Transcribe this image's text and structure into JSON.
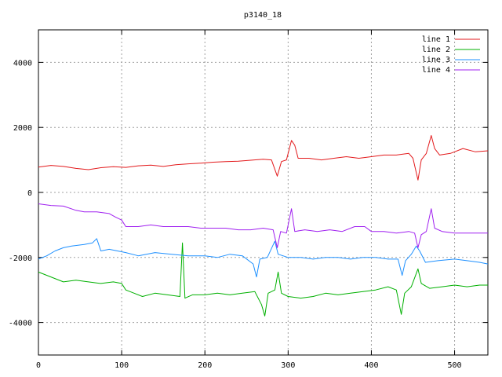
{
  "chart_data": {
    "type": "line",
    "title": "p3140_18",
    "xlabel": "",
    "ylabel": "",
    "xlim": [
      0,
      540
    ],
    "ylim": [
      -5000,
      5000
    ],
    "x_ticks": [
      0,
      100,
      200,
      300,
      400,
      500
    ],
    "y_ticks": [
      -4000,
      -2000,
      0,
      2000,
      4000
    ],
    "grid": true,
    "legend_position": "top-right",
    "series": [
      {
        "name": "line 1",
        "color": "#e31a1c",
        "points": [
          [
            0,
            780
          ],
          [
            15,
            830
          ],
          [
            30,
            800
          ],
          [
            45,
            740
          ],
          [
            60,
            700
          ],
          [
            75,
            760
          ],
          [
            90,
            790
          ],
          [
            105,
            770
          ],
          [
            120,
            820
          ],
          [
            135,
            840
          ],
          [
            150,
            800
          ],
          [
            165,
            850
          ],
          [
            180,
            880
          ],
          [
            195,
            900
          ],
          [
            210,
            930
          ],
          [
            225,
            950
          ],
          [
            240,
            960
          ],
          [
            255,
            990
          ],
          [
            270,
            1020
          ],
          [
            280,
            1000
          ],
          [
            287,
            500
          ],
          [
            292,
            950
          ],
          [
            298,
            1000
          ],
          [
            304,
            1600
          ],
          [
            308,
            1450
          ],
          [
            312,
            1050
          ],
          [
            325,
            1050
          ],
          [
            340,
            1000
          ],
          [
            355,
            1050
          ],
          [
            370,
            1100
          ],
          [
            385,
            1050
          ],
          [
            400,
            1100
          ],
          [
            415,
            1150
          ],
          [
            430,
            1150
          ],
          [
            445,
            1200
          ],
          [
            450,
            1050
          ],
          [
            456,
            380
          ],
          [
            460,
            1000
          ],
          [
            466,
            1200
          ],
          [
            472,
            1750
          ],
          [
            476,
            1350
          ],
          [
            482,
            1150
          ],
          [
            495,
            1200
          ],
          [
            510,
            1350
          ],
          [
            525,
            1250
          ],
          [
            540,
            1280
          ]
        ]
      },
      {
        "name": "line 2",
        "color": "#00b000",
        "points": [
          [
            0,
            -2450
          ],
          [
            15,
            -2600
          ],
          [
            30,
            -2750
          ],
          [
            45,
            -2700
          ],
          [
            60,
            -2750
          ],
          [
            75,
            -2800
          ],
          [
            90,
            -2750
          ],
          [
            100,
            -2800
          ],
          [
            105,
            -3000
          ],
          [
            115,
            -3100
          ],
          [
            125,
            -3200
          ],
          [
            140,
            -3100
          ],
          [
            155,
            -3150
          ],
          [
            170,
            -3200
          ],
          [
            173,
            -1550
          ],
          [
            176,
            -3250
          ],
          [
            185,
            -3150
          ],
          [
            200,
            -3150
          ],
          [
            215,
            -3100
          ],
          [
            230,
            -3150
          ],
          [
            245,
            -3100
          ],
          [
            260,
            -3050
          ],
          [
            268,
            -3450
          ],
          [
            272,
            -3800
          ],
          [
            276,
            -3100
          ],
          [
            284,
            -3000
          ],
          [
            288,
            -2450
          ],
          [
            292,
            -3100
          ],
          [
            300,
            -3200
          ],
          [
            315,
            -3250
          ],
          [
            330,
            -3200
          ],
          [
            345,
            -3100
          ],
          [
            360,
            -3150
          ],
          [
            375,
            -3100
          ],
          [
            390,
            -3050
          ],
          [
            405,
            -3000
          ],
          [
            420,
            -2900
          ],
          [
            430,
            -3000
          ],
          [
            436,
            -3750
          ],
          [
            440,
            -3100
          ],
          [
            448,
            -2900
          ],
          [
            456,
            -2350
          ],
          [
            460,
            -2800
          ],
          [
            470,
            -2950
          ],
          [
            485,
            -2900
          ],
          [
            500,
            -2850
          ],
          [
            515,
            -2900
          ],
          [
            530,
            -2850
          ],
          [
            540,
            -2850
          ]
        ]
      },
      {
        "name": "line 3",
        "color": "#1e90ff",
        "points": [
          [
            0,
            -2050
          ],
          [
            10,
            -1950
          ],
          [
            20,
            -1800
          ],
          [
            30,
            -1700
          ],
          [
            40,
            -1650
          ],
          [
            55,
            -1600
          ],
          [
            65,
            -1550
          ],
          [
            70,
            -1420
          ],
          [
            75,
            -1800
          ],
          [
            85,
            -1750
          ],
          [
            95,
            -1800
          ],
          [
            105,
            -1850
          ],
          [
            120,
            -1950
          ],
          [
            140,
            -1850
          ],
          [
            160,
            -1900
          ],
          [
            180,
            -1950
          ],
          [
            200,
            -1950
          ],
          [
            215,
            -2000
          ],
          [
            230,
            -1900
          ],
          [
            245,
            -1950
          ],
          [
            258,
            -2200
          ],
          [
            262,
            -2600
          ],
          [
            266,
            -2050
          ],
          [
            275,
            -2000
          ],
          [
            284,
            -1500
          ],
          [
            288,
            -1900
          ],
          [
            300,
            -2000
          ],
          [
            315,
            -2000
          ],
          [
            330,
            -2050
          ],
          [
            345,
            -2000
          ],
          [
            360,
            -2000
          ],
          [
            375,
            -2050
          ],
          [
            390,
            -2000
          ],
          [
            405,
            -2000
          ],
          [
            420,
            -2050
          ],
          [
            432,
            -2050
          ],
          [
            437,
            -2550
          ],
          [
            441,
            -2100
          ],
          [
            448,
            -1900
          ],
          [
            454,
            -1650
          ],
          [
            458,
            -1800
          ],
          [
            465,
            -2150
          ],
          [
            480,
            -2100
          ],
          [
            500,
            -2050
          ],
          [
            515,
            -2100
          ],
          [
            530,
            -2150
          ],
          [
            540,
            -2200
          ]
        ]
      },
      {
        "name": "line 4",
        "color": "#a020f0",
        "points": [
          [
            0,
            -350
          ],
          [
            15,
            -400
          ],
          [
            30,
            -420
          ],
          [
            45,
            -550
          ],
          [
            55,
            -600
          ],
          [
            70,
            -600
          ],
          [
            85,
            -650
          ],
          [
            92,
            -750
          ],
          [
            100,
            -850
          ],
          [
            105,
            -1050
          ],
          [
            120,
            -1050
          ],
          [
            135,
            -1000
          ],
          [
            150,
            -1050
          ],
          [
            165,
            -1050
          ],
          [
            180,
            -1050
          ],
          [
            195,
            -1100
          ],
          [
            210,
            -1100
          ],
          [
            225,
            -1100
          ],
          [
            240,
            -1150
          ],
          [
            255,
            -1150
          ],
          [
            270,
            -1100
          ],
          [
            282,
            -1150
          ],
          [
            287,
            -1700
          ],
          [
            291,
            -1200
          ],
          [
            298,
            -1250
          ],
          [
            304,
            -500
          ],
          [
            308,
            -1200
          ],
          [
            320,
            -1150
          ],
          [
            335,
            -1200
          ],
          [
            350,
            -1150
          ],
          [
            365,
            -1200
          ],
          [
            380,
            -1050
          ],
          [
            392,
            -1050
          ],
          [
            400,
            -1200
          ],
          [
            415,
            -1200
          ],
          [
            430,
            -1250
          ],
          [
            445,
            -1200
          ],
          [
            452,
            -1250
          ],
          [
            456,
            -1700
          ],
          [
            460,
            -1300
          ],
          [
            466,
            -1200
          ],
          [
            472,
            -500
          ],
          [
            476,
            -1100
          ],
          [
            485,
            -1200
          ],
          [
            500,
            -1250
          ],
          [
            515,
            -1250
          ],
          [
            530,
            -1250
          ],
          [
            540,
            -1250
          ]
        ]
      }
    ]
  }
}
